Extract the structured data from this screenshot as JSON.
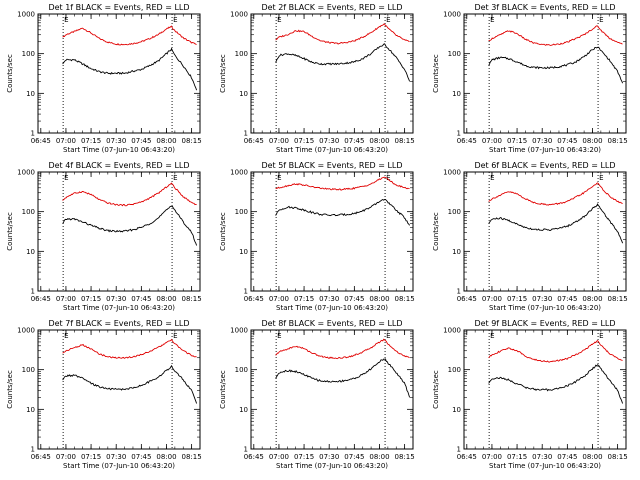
{
  "colors": {
    "events": "#000000",
    "lld": "#e00000",
    "axis": "#000000"
  },
  "shared": {
    "xlabel": "Start Time (07-Jun-10 06:43:20)",
    "ylabel": "Counts/sec",
    "x_ticks": [
      "06:45",
      "07:00",
      "07:15",
      "07:30",
      "07:45",
      "08:00",
      "08:15"
    ],
    "y_ticks": [
      "1",
      "10",
      "100",
      "1000"
    ],
    "marker_left": "E",
    "marker_right": "E",
    "scale": "log",
    "xlim": [
      "06:43:20",
      "08:20:00"
    ],
    "ylim": [
      1,
      1000
    ],
    "markers_at": [
      "06:58:20",
      "08:03:20"
    ],
    "grid": false,
    "legend": "none"
  },
  "chart_data": [
    {
      "type": "line",
      "title": "Det 1f BLACK = Events, RED = LLD",
      "x": [
        "06:58",
        "07:00",
        "07:05",
        "07:10",
        "07:15",
        "07:20",
        "07:25",
        "07:30",
        "07:35",
        "07:40",
        "07:45",
        "07:50",
        "07:55",
        "08:00",
        "08:03",
        "08:05",
        "08:10",
        "08:15",
        "08:18"
      ],
      "series": [
        {
          "name": "LLD",
          "color": "#e00000",
          "values": [
            260,
            300,
            360,
            440,
            330,
            240,
            195,
            175,
            170,
            180,
            200,
            240,
            300,
            420,
            480,
            380,
            250,
            190,
            170
          ]
        },
        {
          "name": "Events",
          "color": "#000000",
          "values": [
            55,
            70,
            70,
            55,
            42,
            35,
            32,
            32,
            32,
            36,
            40,
            50,
            65,
            100,
            130,
            90,
            50,
            25,
            12
          ]
        }
      ]
    },
    {
      "type": "line",
      "title": "Det 2f BLACK = Events, RED = LLD",
      "x": [
        "06:58",
        "07:00",
        "07:05",
        "07:10",
        "07:15",
        "07:20",
        "07:25",
        "07:30",
        "07:35",
        "07:40",
        "07:45",
        "07:50",
        "07:55",
        "08:00",
        "08:03",
        "08:05",
        "08:10",
        "08:15",
        "08:18"
      ],
      "series": [
        {
          "name": "LLD",
          "color": "#e00000",
          "values": [
            220,
            260,
            300,
            380,
            360,
            270,
            210,
            190,
            180,
            190,
            210,
            260,
            340,
            480,
            560,
            440,
            290,
            220,
            200
          ]
        },
        {
          "name": "Events",
          "color": "#000000",
          "values": [
            60,
            90,
            100,
            90,
            75,
            60,
            55,
            55,
            55,
            58,
            62,
            75,
            100,
            150,
            170,
            140,
            80,
            40,
            20
          ]
        }
      ]
    },
    {
      "type": "line",
      "title": "Det 3f BLACK = Events, RED = LLD",
      "x": [
        "06:58",
        "07:00",
        "07:05",
        "07:10",
        "07:15",
        "07:20",
        "07:25",
        "07:30",
        "07:35",
        "07:40",
        "07:45",
        "07:50",
        "07:55",
        "08:00",
        "08:03",
        "08:05",
        "08:10",
        "08:15",
        "08:18"
      ],
      "series": [
        {
          "name": "LLD",
          "color": "#e00000",
          "values": [
            210,
            240,
            300,
            380,
            320,
            230,
            185,
            170,
            165,
            175,
            195,
            240,
            300,
            420,
            500,
            390,
            250,
            190,
            175
          ]
        },
        {
          "name": "Events",
          "color": "#000000",
          "values": [
            50,
            70,
            80,
            75,
            62,
            50,
            45,
            44,
            44,
            47,
            52,
            62,
            85,
            125,
            150,
            120,
            70,
            35,
            18
          ]
        }
      ]
    },
    {
      "type": "line",
      "title": "Det 4f BLACK = Events, RED = LLD",
      "x": [
        "06:58",
        "07:00",
        "07:05",
        "07:10",
        "07:15",
        "07:20",
        "07:25",
        "07:30",
        "07:35",
        "07:40",
        "07:45",
        "07:50",
        "07:55",
        "08:00",
        "08:03",
        "08:05",
        "08:10",
        "08:15",
        "08:18"
      ],
      "series": [
        {
          "name": "LLD",
          "color": "#e00000",
          "values": [
            190,
            230,
            290,
            320,
            270,
            200,
            165,
            150,
            145,
            155,
            175,
            220,
            290,
            420,
            520,
            400,
            240,
            170,
            150
          ]
        },
        {
          "name": "Events",
          "color": "#000000",
          "values": [
            50,
            65,
            65,
            55,
            45,
            38,
            33,
            32,
            32,
            35,
            40,
            50,
            68,
            110,
            145,
            110,
            55,
            30,
            14
          ]
        }
      ]
    },
    {
      "type": "line",
      "title": "Det 5f BLACK = Events, RED = LLD",
      "x": [
        "06:58",
        "07:00",
        "07:05",
        "07:10",
        "07:15",
        "07:20",
        "07:25",
        "07:30",
        "07:35",
        "07:40",
        "07:45",
        "07:50",
        "07:55",
        "08:00",
        "08:03",
        "08:05",
        "08:10",
        "08:15",
        "08:18"
      ],
      "series": [
        {
          "name": "LLD",
          "color": "#e00000",
          "values": [
            380,
            400,
            450,
            500,
            470,
            420,
            390,
            370,
            360,
            370,
            390,
            430,
            500,
            650,
            760,
            650,
            470,
            400,
            380
          ]
        },
        {
          "name": "Events",
          "color": "#000000",
          "values": [
            80,
            110,
            130,
            125,
            110,
            95,
            85,
            82,
            82,
            85,
            90,
            105,
            130,
            180,
            210,
            170,
            110,
            70,
            45
          ]
        }
      ]
    },
    {
      "type": "line",
      "title": "Det 6f BLACK = Events, RED = LLD",
      "x": [
        "06:58",
        "07:00",
        "07:05",
        "07:10",
        "07:15",
        "07:20",
        "07:25",
        "07:30",
        "07:35",
        "07:40",
        "07:45",
        "07:50",
        "07:55",
        "08:00",
        "08:03",
        "08:05",
        "08:10",
        "08:15",
        "08:18"
      ],
      "series": [
        {
          "name": "LLD",
          "color": "#e00000",
          "values": [
            180,
            210,
            260,
            320,
            280,
            210,
            170,
            155,
            150,
            160,
            180,
            230,
            300,
            430,
            530,
            410,
            250,
            180,
            160
          ]
        },
        {
          "name": "Events",
          "color": "#000000",
          "values": [
            50,
            65,
            68,
            60,
            48,
            40,
            36,
            35,
            35,
            38,
            43,
            55,
            75,
            120,
            150,
            115,
            60,
            32,
            16
          ]
        }
      ]
    },
    {
      "type": "line",
      "title": "Det 7f BLACK = Events, RED = LLD",
      "x": [
        "06:58",
        "07:00",
        "07:05",
        "07:10",
        "07:15",
        "07:20",
        "07:25",
        "07:30",
        "07:35",
        "07:40",
        "07:45",
        "07:50",
        "07:55",
        "08:00",
        "08:03",
        "08:05",
        "08:10",
        "08:15",
        "08:18"
      ],
      "series": [
        {
          "name": "LLD",
          "color": "#e00000",
          "values": [
            260,
            300,
            360,
            420,
            330,
            250,
            210,
            200,
            200,
            210,
            240,
            290,
            360,
            480,
            560,
            450,
            300,
            230,
            210
          ]
        },
        {
          "name": "Events",
          "color": "#000000",
          "values": [
            55,
            70,
            72,
            60,
            45,
            37,
            33,
            32,
            32,
            35,
            40,
            50,
            65,
            95,
            120,
            95,
            55,
            30,
            14
          ]
        }
      ]
    },
    {
      "type": "line",
      "title": "Det 8f BLACK = Events, RED = LLD",
      "x": [
        "06:58",
        "07:00",
        "07:05",
        "07:10",
        "07:15",
        "07:20",
        "07:25",
        "07:30",
        "07:35",
        "07:40",
        "07:45",
        "07:50",
        "07:55",
        "08:00",
        "08:03",
        "08:05",
        "08:10",
        "08:15",
        "08:18"
      ],
      "series": [
        {
          "name": "LLD",
          "color": "#e00000",
          "values": [
            230,
            280,
            330,
            390,
            340,
            260,
            215,
            200,
            195,
            205,
            230,
            280,
            360,
            500,
            580,
            450,
            290,
            220,
            200
          ]
        },
        {
          "name": "Events",
          "color": "#000000",
          "values": [
            60,
            85,
            95,
            90,
            75,
            60,
            52,
            50,
            50,
            54,
            60,
            75,
            105,
            160,
            190,
            150,
            85,
            45,
            20
          ]
        }
      ]
    },
    {
      "type": "line",
      "title": "Det 9f BLACK = Events, RED = LLD",
      "x": [
        "06:58",
        "07:00",
        "07:05",
        "07:10",
        "07:15",
        "07:20",
        "07:25",
        "07:30",
        "07:35",
        "07:40",
        "07:45",
        "07:50",
        "07:55",
        "08:00",
        "08:03",
        "08:05",
        "08:10",
        "08:15",
        "08:18"
      ],
      "series": [
        {
          "name": "LLD",
          "color": "#e00000",
          "values": [
            200,
            240,
            290,
            350,
            300,
            220,
            180,
            165,
            160,
            170,
            190,
            240,
            310,
            440,
            530,
            410,
            260,
            190,
            170
          ]
        },
        {
          "name": "Events",
          "color": "#000000",
          "values": [
            45,
            60,
            62,
            55,
            44,
            36,
            32,
            31,
            31,
            34,
            39,
            50,
            68,
            105,
            135,
            105,
            55,
            30,
            14
          ]
        }
      ]
    }
  ]
}
